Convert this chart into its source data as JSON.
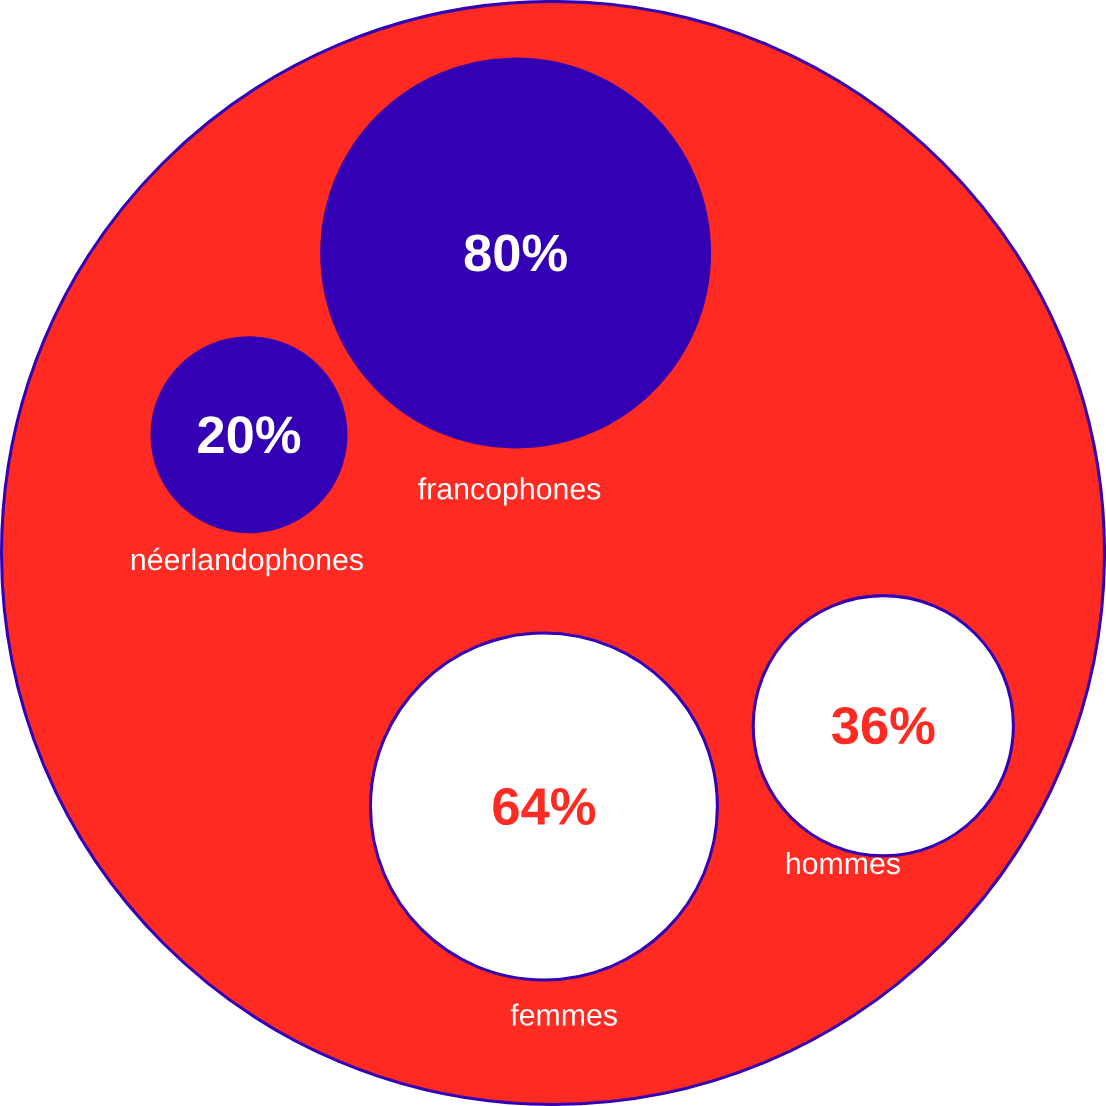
{
  "chart_data": {
    "type": "other",
    "categories": [
      "francophones",
      "néerlandophones",
      "femmes",
      "hommes"
    ],
    "values": [
      80,
      20,
      64,
      36
    ],
    "colors": [
      "#3300b3",
      "#3300b3",
      "#ffffff",
      "#ffffff"
    ],
    "value_labels": [
      "80%",
      "20%",
      "64%",
      "36%"
    ]
  }
}
